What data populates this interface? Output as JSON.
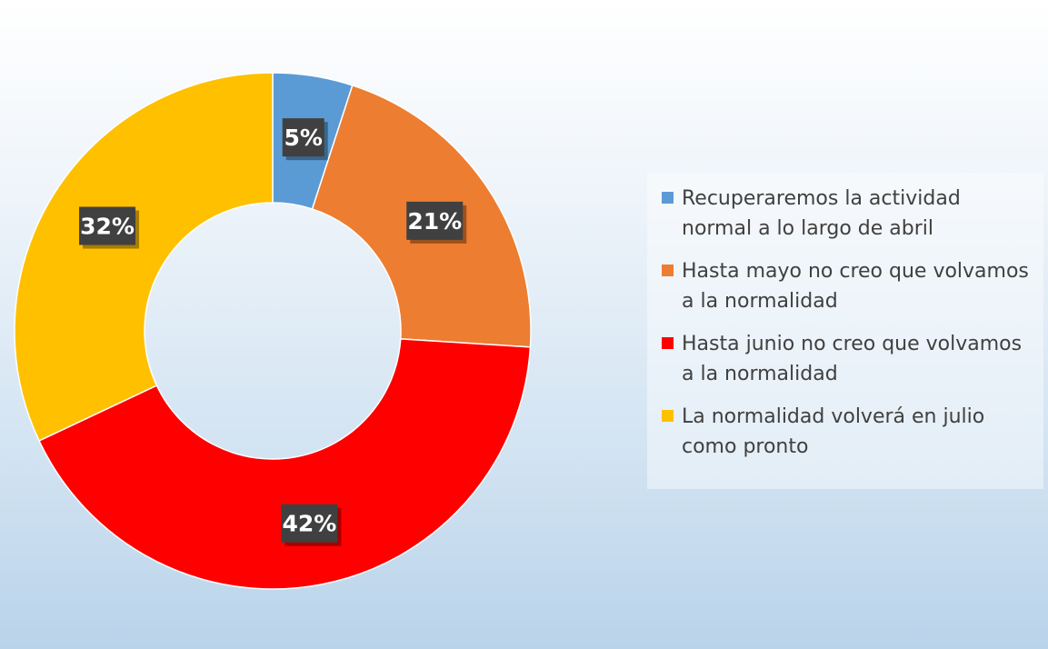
{
  "chart_data": {
    "type": "pie",
    "donut": true,
    "legend_position": "right",
    "categories": [
      "Recuperaremos la actividad normal a lo largo de abril",
      "Hasta mayo no creo que volvamos a la normalidad",
      "Hasta junio no creo que volvamos a la normalidad",
      "La normalidad volverá en julio como pronto"
    ],
    "values": [
      5,
      21,
      42,
      32
    ],
    "value_labels": [
      "5%",
      "21%",
      "42%",
      "32%"
    ],
    "colors": [
      "#5b9bd5",
      "#ed7d31",
      "#ff0000",
      "#ffc000"
    ]
  }
}
